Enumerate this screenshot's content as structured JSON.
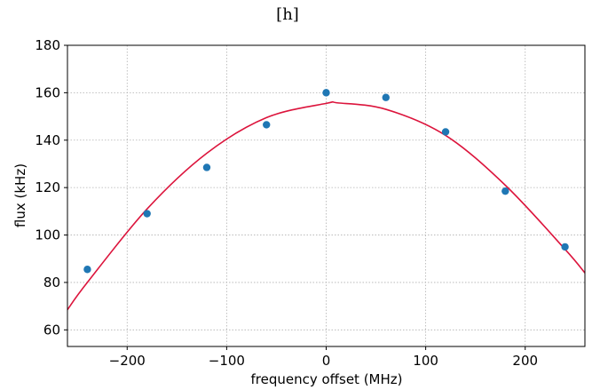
{
  "chart_data": {
    "type": "scatter",
    "title": "[h]",
    "xlabel": "frequency offset (MHz)",
    "ylabel": "flux (kHz)",
    "xlim": [
      -260,
      260
    ],
    "ylim": [
      53,
      180
    ],
    "xticks": [
      -200,
      -100,
      0,
      100,
      200
    ],
    "xtick_labels": [
      "−200",
      "−100",
      "0",
      "100",
      "200"
    ],
    "yticks": [
      60,
      80,
      100,
      120,
      140,
      160,
      180
    ],
    "ytick_labels": [
      "60",
      "80",
      "100",
      "120",
      "140",
      "160",
      "180"
    ],
    "grid": true,
    "series": [
      {
        "kind": "points",
        "color": "#1f77b4",
        "x": [
          -240,
          -180,
          -120,
          -60,
          0,
          60,
          120,
          180,
          240
        ],
        "y": [
          85.5,
          109,
          128.5,
          146.5,
          160,
          158,
          143.5,
          118.5,
          95
        ]
      },
      {
        "kind": "fit-curve",
        "color": "#dc143c",
        "x": [
          -260,
          -240,
          -180,
          -120,
          -60,
          0,
          12,
          60,
          120,
          180,
          240,
          260
        ],
        "y": [
          68.5,
          80,
          111,
          134.5,
          149.5,
          155.5,
          155.7,
          153,
          142,
          121,
          94,
          84
        ]
      }
    ]
  }
}
